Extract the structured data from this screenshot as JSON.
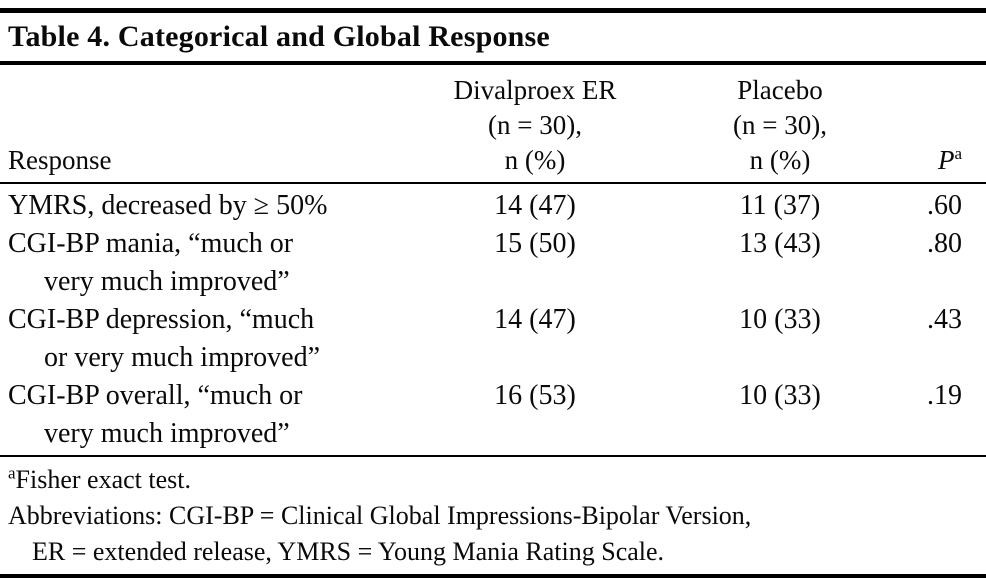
{
  "title": "Table 4. Categorical and Global Response",
  "table": {
    "header": {
      "response": "Response",
      "divalproex_line1": "Divalproex ER",
      "divalproex_line2": "(n = 30),",
      "divalproex_line3": "n (%)",
      "placebo_line1": "Placebo",
      "placebo_line2": "(n = 30),",
      "placebo_line3": "n (%)",
      "p_label": "P",
      "p_sup": "a"
    },
    "rows": [
      {
        "label1": "YMRS, decreased by ≥ 50%",
        "label2": "",
        "divalproex": "14 (47)",
        "placebo": "11 (37)",
        "p": ".60"
      },
      {
        "label1": "CGI-BP mania, “much or",
        "label2": "very much improved”",
        "divalproex": "15 (50)",
        "placebo": "13 (43)",
        "p": ".80"
      },
      {
        "label1": "CGI-BP depression, “much",
        "label2": "or very much improved”",
        "divalproex": "14 (47)",
        "placebo": "10 (33)",
        "p": ".43"
      },
      {
        "label1": "CGI-BP overall, “much or",
        "label2": "very much improved”",
        "divalproex": "16 (53)",
        "placebo": "10 (33)",
        "p": ".19"
      }
    ]
  },
  "footnotes": {
    "fisher_sup": "a",
    "fisher_text": "Fisher exact test.",
    "abbrev_line1": "Abbreviations: CGI-BP = Clinical Global Impressions-Bipolar Version,",
    "abbrev_line2": "ER = extended release, YMRS = Young Mania Rating Scale."
  }
}
